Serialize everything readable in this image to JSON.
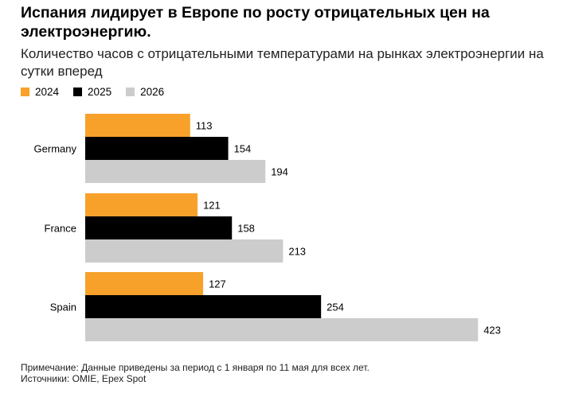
{
  "title": "Испания лидирует в Европе по росту отрицательных цен на электроэнергию.",
  "subtitle": "Количество часов с отрицательными температурами на рынках электроэнергии на сутки вперед",
  "note": "Примечание: Данные приведены за период с 1 января по 11 мая для всех лет.",
  "source": "Источники: OMIE, Epex Spot",
  "colors": {
    "2024": "#f7a12a",
    "2025": "#000000",
    "2026": "#cccccc"
  },
  "chart_data": {
    "type": "bar",
    "orientation": "horizontal",
    "categories": [
      "Germany",
      "France",
      "Spain"
    ],
    "series": [
      {
        "name": "2024",
        "values": [
          113,
          121,
          127
        ]
      },
      {
        "name": "2025",
        "values": [
          154,
          158,
          254
        ]
      },
      {
        "name": "2026",
        "values": [
          194,
          213,
          423
        ]
      }
    ],
    "legend_position": "top-left",
    "grid": false
  }
}
